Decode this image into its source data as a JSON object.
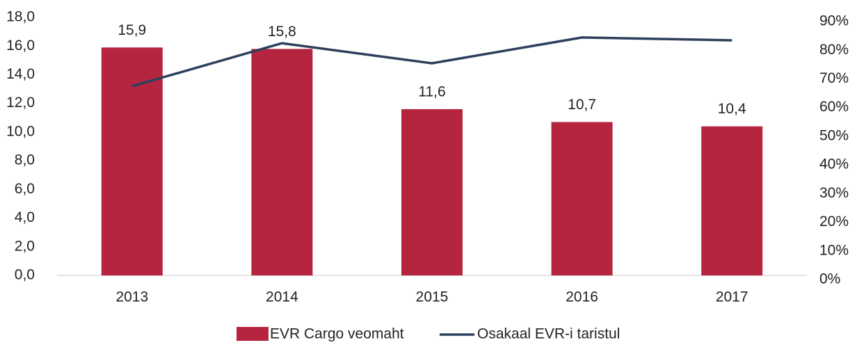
{
  "chart_data": {
    "type": "bar",
    "categories": [
      "2013",
      "2014",
      "2015",
      "2016",
      "2017"
    ],
    "series": [
      {
        "name": "EVR Cargo veomaht",
        "type": "bar",
        "color": "#b5253f",
        "values": [
          15.9,
          15.8,
          11.6,
          10.7,
          10.4
        ],
        "value_labels": [
          "15,9",
          "15,8",
          "11,6",
          "10,7",
          "10,4"
        ]
      },
      {
        "name": "Osakaal EVR-i taristul",
        "type": "line",
        "axis": "y2",
        "color": "#2e3f5c",
        "values": [
          66,
          81,
          74,
          83,
          82
        ]
      }
    ],
    "ylim": [
      0,
      18
    ],
    "yticks": [
      {
        "value": 0,
        "label": "0,0"
      },
      {
        "value": 2,
        "label": "2,0"
      },
      {
        "value": 4,
        "label": "4,0"
      },
      {
        "value": 6,
        "label": "6,0"
      },
      {
        "value": 8,
        "label": "8,0"
      },
      {
        "value": 10,
        "label": "10,0"
      },
      {
        "value": 12,
        "label": "12,0"
      },
      {
        "value": 14,
        "label": "14,0"
      },
      {
        "value": 16,
        "label": "16,0"
      },
      {
        "value": 18,
        "label": "18,0"
      }
    ],
    "y2lim": [
      0,
      90
    ],
    "y2ticks": [
      {
        "value": 0,
        "label": "0%"
      },
      {
        "value": 10,
        "label": "10%"
      },
      {
        "value": 20,
        "label": "20%"
      },
      {
        "value": 30,
        "label": "30%"
      },
      {
        "value": 40,
        "label": "40%"
      },
      {
        "value": 50,
        "label": "50%"
      },
      {
        "value": 60,
        "label": "60%"
      },
      {
        "value": 70,
        "label": "70%"
      },
      {
        "value": 80,
        "label": "80%"
      },
      {
        "value": 90,
        "label": "90%"
      }
    ],
    "legend": "bottom"
  }
}
